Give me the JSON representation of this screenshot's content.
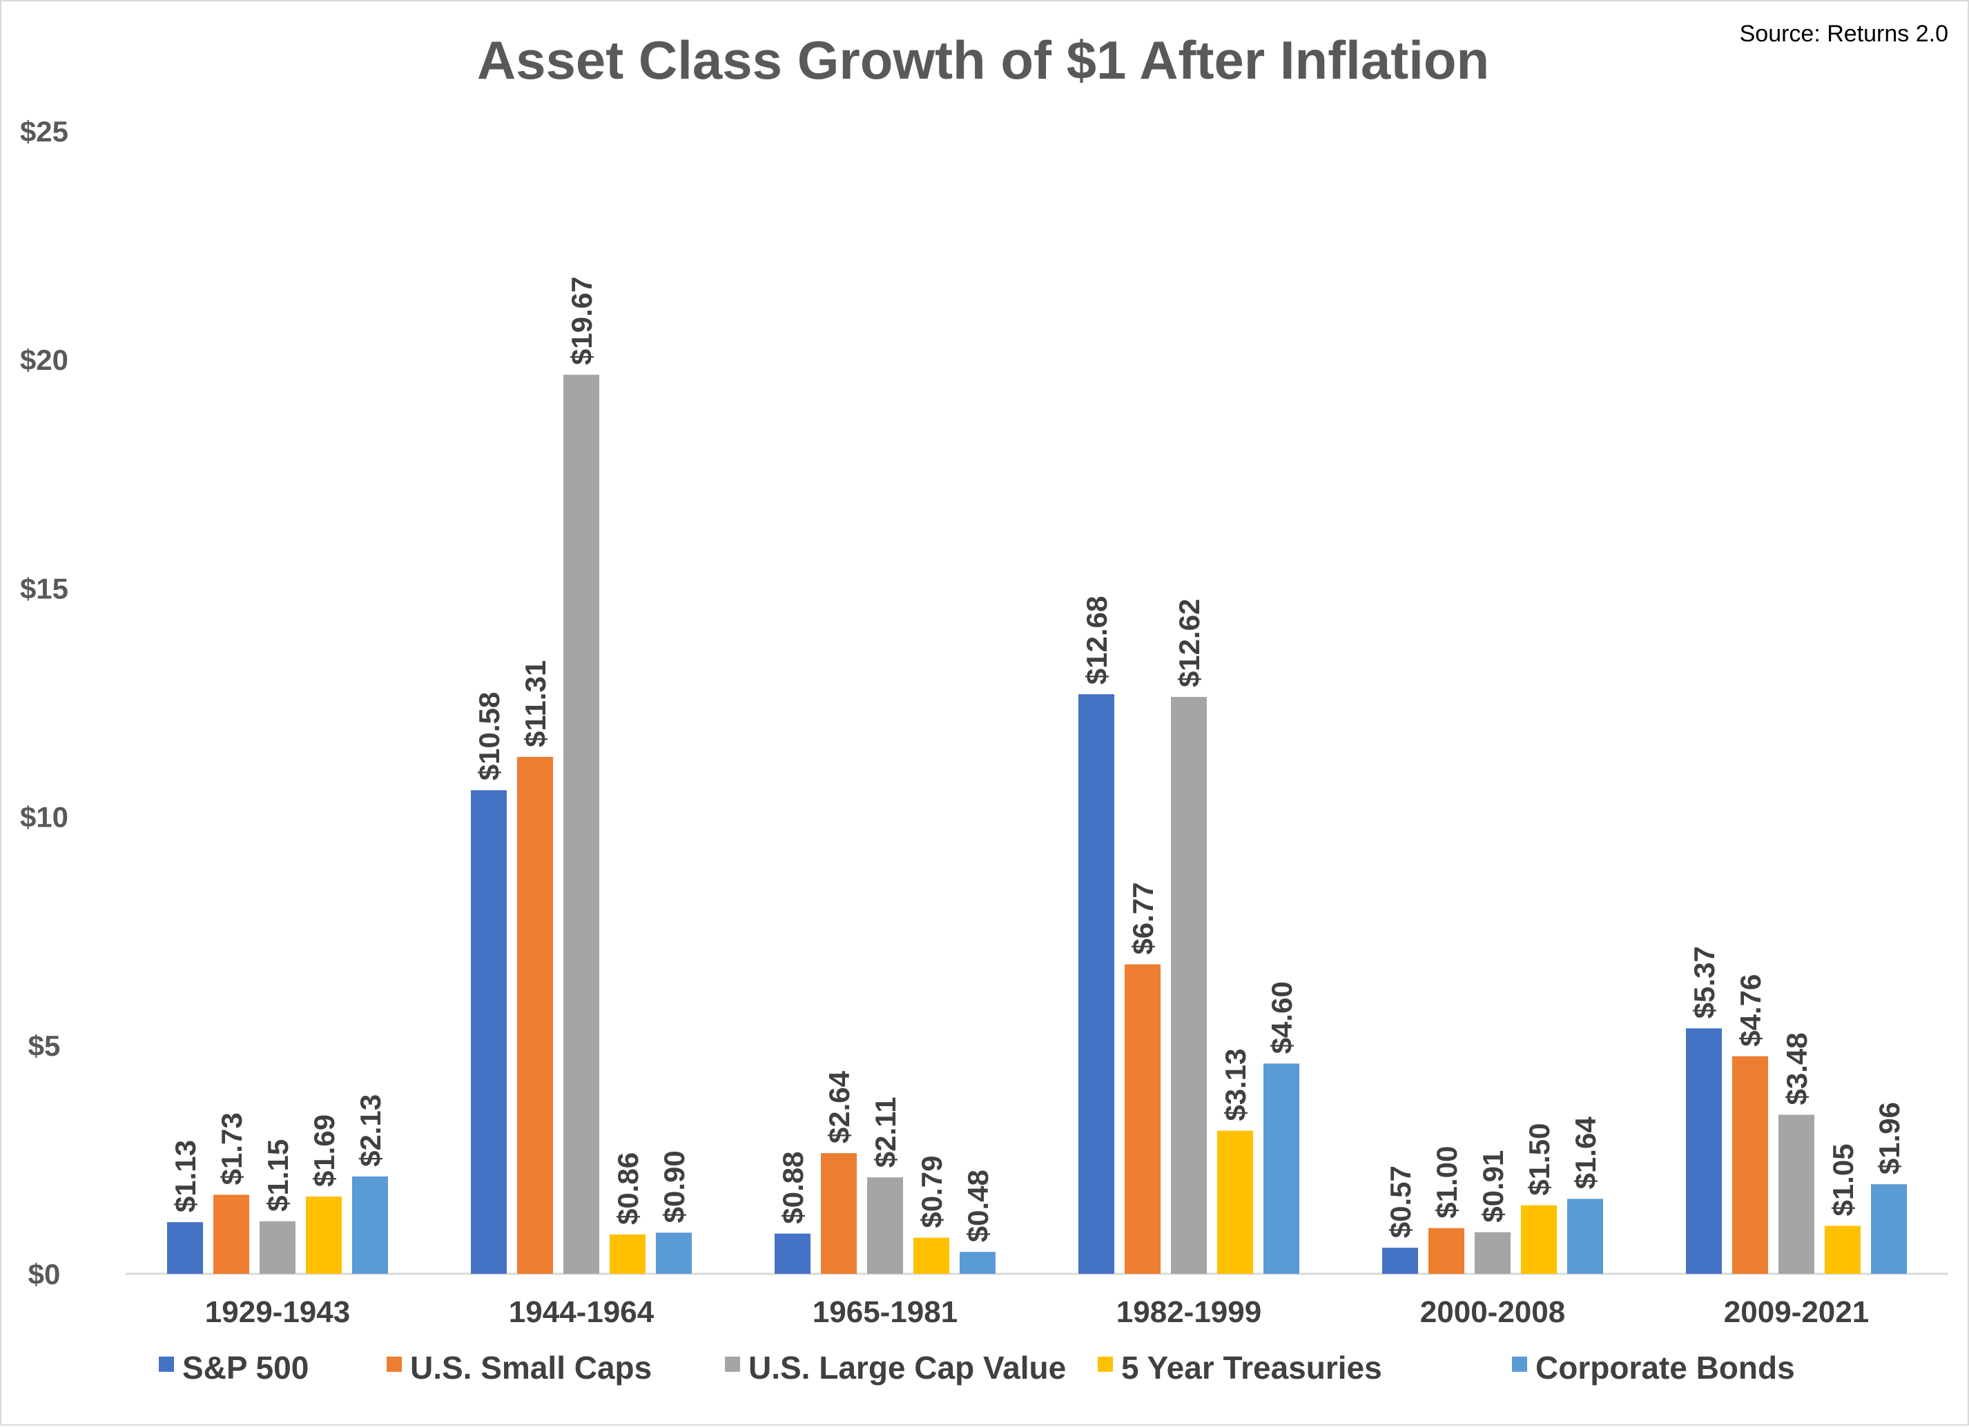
{
  "source_note": "Source: Returns 2.0",
  "chart_data": {
    "type": "bar",
    "title": "Asset Class Growth of $1 After Inflation",
    "categories": [
      "1929-1943",
      "1944-1964",
      "1965-1981",
      "1982-1999",
      "2000-2008",
      "2009-2021"
    ],
    "series": [
      {
        "name": "S&P 500",
        "color": "#4472C4",
        "values": [
          1.13,
          10.58,
          0.88,
          12.68,
          0.57,
          5.37
        ],
        "labels": [
          "$1.13",
          "$10.58",
          "$0.88",
          "$12.68",
          "$0.57",
          "$5.37"
        ]
      },
      {
        "name": "U.S. Small Caps",
        "color": "#ED7D31",
        "values": [
          1.73,
          11.31,
          2.64,
          6.77,
          1.0,
          4.76
        ],
        "labels": [
          "$1.73",
          "$11.31",
          "$2.64",
          "$6.77",
          "$1.00",
          "$4.76"
        ]
      },
      {
        "name": "U.S. Large Cap Value",
        "color": "#A5A5A5",
        "values": [
          1.15,
          19.67,
          2.11,
          12.62,
          0.91,
          3.48
        ],
        "labels": [
          "$1.15",
          "$19.67",
          "$2.11",
          "$12.62",
          "$0.91",
          "$3.48"
        ]
      },
      {
        "name": "5 Year Treasuries",
        "color": "#FFC000",
        "values": [
          1.69,
          0.86,
          0.79,
          3.13,
          1.5,
          1.05
        ],
        "labels": [
          "$1.69",
          "$0.86",
          "$0.79",
          "$3.13",
          "$1.50",
          "$1.05"
        ]
      },
      {
        "name": "Corporate Bonds",
        "color": "#5B9BD5",
        "values": [
          2.13,
          0.9,
          0.48,
          4.6,
          1.64,
          1.96
        ],
        "labels": [
          "$2.13",
          "$0.90",
          "$0.48",
          "$4.60",
          "$1.64",
          "$1.96"
        ]
      }
    ],
    "ylim": [
      0,
      25
    ],
    "yticks": [
      0,
      5,
      10,
      15,
      20,
      25
    ],
    "ytick_labels": [
      "$0",
      "$5",
      "$10",
      "$15",
      "$20",
      "$25"
    ],
    "grid": false,
    "legend_position": "bottom",
    "data_labels": "rotated vertical above bars"
  }
}
